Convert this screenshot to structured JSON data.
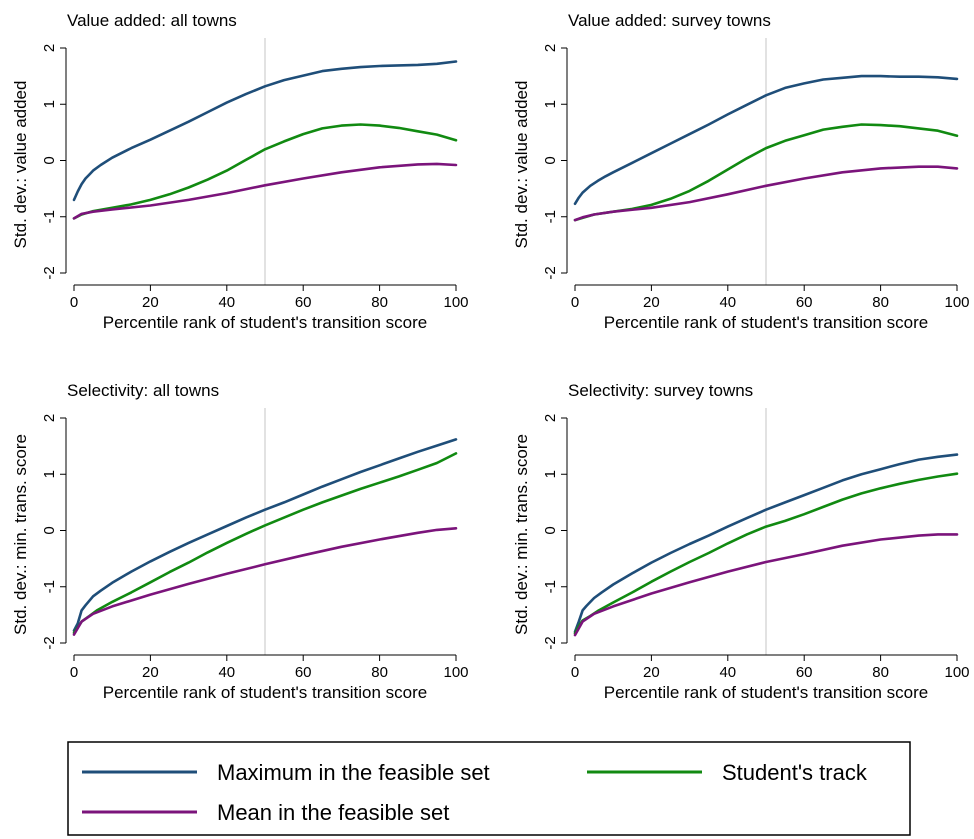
{
  "colors": {
    "max": "#1f4e79",
    "track": "#118a11",
    "mean": "#7b147b",
    "refline": "#d9d9d9",
    "axis": "#000000"
  },
  "legend": {
    "placement": "bottom",
    "items": [
      {
        "key": "max",
        "label": "Maximum in the feasible set"
      },
      {
        "key": "track",
        "label": "Student's track"
      },
      {
        "key": "mean",
        "label": "Mean in the feasible set"
      }
    ]
  },
  "chart_data": [
    {
      "type": "line",
      "title": "Value added: all towns",
      "xlabel": "Percentile rank of student's transition score",
      "ylabel": "Std. dev.: value added",
      "xlim": [
        0,
        100
      ],
      "ylim": [
        -2,
        2
      ],
      "xticks": [
        "0",
        "20",
        "40",
        "60",
        "80",
        "100"
      ],
      "yticks": [
        "-2",
        "-1",
        "0",
        "1",
        "2"
      ],
      "refline_x": 50,
      "grid": false,
      "series": [
        {
          "key": "max",
          "x": [
            0,
            1,
            2,
            3,
            4,
            5,
            7,
            10,
            15,
            20,
            25,
            30,
            35,
            40,
            45,
            50,
            55,
            60,
            65,
            70,
            75,
            80,
            85,
            90,
            95,
            100
          ],
          "y": [
            -0.7,
            -0.55,
            -0.42,
            -0.32,
            -0.25,
            -0.18,
            -0.08,
            0.05,
            0.22,
            0.37,
            0.53,
            0.69,
            0.86,
            1.03,
            1.18,
            1.32,
            1.43,
            1.51,
            1.59,
            1.63,
            1.66,
            1.68,
            1.69,
            1.7,
            1.72,
            1.76
          ]
        },
        {
          "key": "track",
          "x": [
            0,
            2,
            5,
            10,
            15,
            20,
            25,
            30,
            35,
            40,
            45,
            50,
            55,
            60,
            65,
            70,
            75,
            80,
            85,
            90,
            95,
            100
          ],
          "y": [
            -1.03,
            -0.96,
            -0.9,
            -0.84,
            -0.78,
            -0.7,
            -0.6,
            -0.48,
            -0.34,
            -0.18,
            0.01,
            0.2,
            0.34,
            0.47,
            0.57,
            0.62,
            0.64,
            0.62,
            0.58,
            0.52,
            0.46,
            0.36
          ]
        },
        {
          "key": "mean",
          "x": [
            0,
            2,
            5,
            10,
            20,
            30,
            40,
            50,
            60,
            70,
            80,
            90,
            95,
            100
          ],
          "y": [
            -1.03,
            -0.95,
            -0.91,
            -0.87,
            -0.8,
            -0.7,
            -0.58,
            -0.44,
            -0.32,
            -0.21,
            -0.12,
            -0.07,
            -0.06,
            -0.08
          ]
        }
      ]
    },
    {
      "type": "line",
      "title": "Value added: survey towns",
      "xlabel": "Percentile rank of student's transition score",
      "ylabel": "Std. dev.: value added",
      "xlim": [
        0,
        100
      ],
      "ylim": [
        -2,
        2
      ],
      "xticks": [
        "0",
        "20",
        "40",
        "60",
        "80",
        "100"
      ],
      "yticks": [
        "-2",
        "-1",
        "0",
        "1",
        "2"
      ],
      "refline_x": 50,
      "grid": false,
      "series": [
        {
          "key": "max",
          "x": [
            0,
            1,
            2,
            4,
            6,
            8,
            10,
            15,
            20,
            25,
            30,
            35,
            40,
            45,
            50,
            55,
            60,
            65,
            70,
            75,
            80,
            85,
            90,
            95,
            100
          ],
          "y": [
            -0.77,
            -0.66,
            -0.57,
            -0.45,
            -0.36,
            -0.28,
            -0.21,
            -0.04,
            0.13,
            0.3,
            0.47,
            0.64,
            0.82,
            0.99,
            1.16,
            1.29,
            1.37,
            1.44,
            1.47,
            1.5,
            1.5,
            1.49,
            1.49,
            1.48,
            1.45
          ]
        },
        {
          "key": "track",
          "x": [
            0,
            2,
            5,
            10,
            15,
            20,
            25,
            30,
            35,
            40,
            45,
            50,
            55,
            60,
            65,
            70,
            75,
            80,
            85,
            90,
            95,
            100
          ],
          "y": [
            -1.06,
            -1.02,
            -0.96,
            -0.91,
            -0.86,
            -0.79,
            -0.68,
            -0.54,
            -0.36,
            -0.16,
            0.04,
            0.22,
            0.35,
            0.45,
            0.55,
            0.6,
            0.64,
            0.63,
            0.61,
            0.57,
            0.53,
            0.44
          ]
        },
        {
          "key": "mean",
          "x": [
            0,
            2,
            5,
            10,
            20,
            30,
            40,
            50,
            60,
            70,
            80,
            90,
            95,
            100
          ],
          "y": [
            -1.06,
            -1.01,
            -0.96,
            -0.91,
            -0.84,
            -0.74,
            -0.6,
            -0.45,
            -0.32,
            -0.21,
            -0.14,
            -0.11,
            -0.11,
            -0.14
          ]
        }
      ]
    },
    {
      "type": "line",
      "title": "Selectivity: all towns",
      "xlabel": "Percentile rank of student's transition score",
      "ylabel": "Std. dev.: min. trans. score",
      "xlim": [
        0,
        100
      ],
      "ylim": [
        -2,
        2
      ],
      "xticks": [
        "0",
        "20",
        "40",
        "60",
        "80",
        "100"
      ],
      "yticks": [
        "-2",
        "-1",
        "0",
        "1",
        "2"
      ],
      "refline_x": 50,
      "grid": false,
      "series": [
        {
          "key": "max",
          "x": [
            0,
            1,
            2,
            3,
            5,
            7,
            10,
            15,
            20,
            25,
            30,
            35,
            40,
            45,
            50,
            55,
            60,
            65,
            70,
            75,
            80,
            85,
            90,
            95,
            100
          ],
          "y": [
            -1.78,
            -1.65,
            -1.42,
            -1.33,
            -1.17,
            -1.07,
            -0.93,
            -0.73,
            -0.55,
            -0.38,
            -0.22,
            -0.07,
            0.08,
            0.23,
            0.37,
            0.5,
            0.64,
            0.78,
            0.91,
            1.04,
            1.16,
            1.28,
            1.4,
            1.51,
            1.62
          ]
        },
        {
          "key": "track",
          "x": [
            0,
            1,
            2,
            4,
            6,
            10,
            15,
            20,
            25,
            30,
            35,
            40,
            45,
            50,
            55,
            60,
            65,
            70,
            75,
            80,
            85,
            90,
            95,
            100
          ],
          "y": [
            -1.82,
            -1.72,
            -1.62,
            -1.52,
            -1.42,
            -1.27,
            -1.1,
            -0.92,
            -0.74,
            -0.57,
            -0.39,
            -0.22,
            -0.06,
            0.09,
            0.23,
            0.37,
            0.5,
            0.62,
            0.74,
            0.85,
            0.96,
            1.08,
            1.2,
            1.37
          ]
        },
        {
          "key": "mean",
          "x": [
            0,
            2,
            5,
            10,
            20,
            30,
            40,
            50,
            60,
            70,
            80,
            90,
            95,
            100
          ],
          "y": [
            -1.85,
            -1.62,
            -1.48,
            -1.35,
            -1.14,
            -0.95,
            -0.77,
            -0.6,
            -0.44,
            -0.29,
            -0.16,
            -0.04,
            0.01,
            0.04
          ]
        }
      ]
    },
    {
      "type": "line",
      "title": "Selectivity: survey towns",
      "xlabel": "Percentile rank of student's transition score",
      "ylabel": "Std. dev.: min. trans. score",
      "xlim": [
        0,
        100
      ],
      "ylim": [
        -2,
        2
      ],
      "xticks": [
        "0",
        "20",
        "40",
        "60",
        "80",
        "100"
      ],
      "yticks": [
        "-2",
        "-1",
        "0",
        "1",
        "2"
      ],
      "refline_x": 50,
      "grid": false,
      "series": [
        {
          "key": "max",
          "x": [
            0,
            1,
            2,
            3,
            5,
            7,
            10,
            15,
            20,
            25,
            30,
            35,
            40,
            45,
            50,
            55,
            60,
            65,
            70,
            75,
            80,
            85,
            90,
            95,
            100
          ],
          "y": [
            -1.8,
            -1.62,
            -1.42,
            -1.34,
            -1.2,
            -1.1,
            -0.96,
            -0.76,
            -0.57,
            -0.4,
            -0.24,
            -0.09,
            0.07,
            0.22,
            0.37,
            0.5,
            0.63,
            0.76,
            0.89,
            1.0,
            1.09,
            1.18,
            1.26,
            1.31,
            1.35
          ]
        },
        {
          "key": "track",
          "x": [
            0,
            1,
            2,
            4,
            6,
            10,
            15,
            20,
            25,
            30,
            35,
            40,
            45,
            50,
            55,
            60,
            65,
            70,
            75,
            80,
            85,
            90,
            95,
            100
          ],
          "y": [
            -1.83,
            -1.7,
            -1.6,
            -1.52,
            -1.43,
            -1.28,
            -1.1,
            -0.91,
            -0.73,
            -0.56,
            -0.4,
            -0.23,
            -0.07,
            0.07,
            0.17,
            0.29,
            0.42,
            0.55,
            0.66,
            0.75,
            0.83,
            0.9,
            0.96,
            1.01
          ]
        },
        {
          "key": "mean",
          "x": [
            0,
            2,
            5,
            10,
            20,
            30,
            40,
            50,
            60,
            70,
            80,
            90,
            95,
            100
          ],
          "y": [
            -1.86,
            -1.62,
            -1.48,
            -1.35,
            -1.12,
            -0.92,
            -0.73,
            -0.56,
            -0.42,
            -0.27,
            -0.16,
            -0.09,
            -0.07,
            -0.07
          ]
        }
      ]
    }
  ]
}
